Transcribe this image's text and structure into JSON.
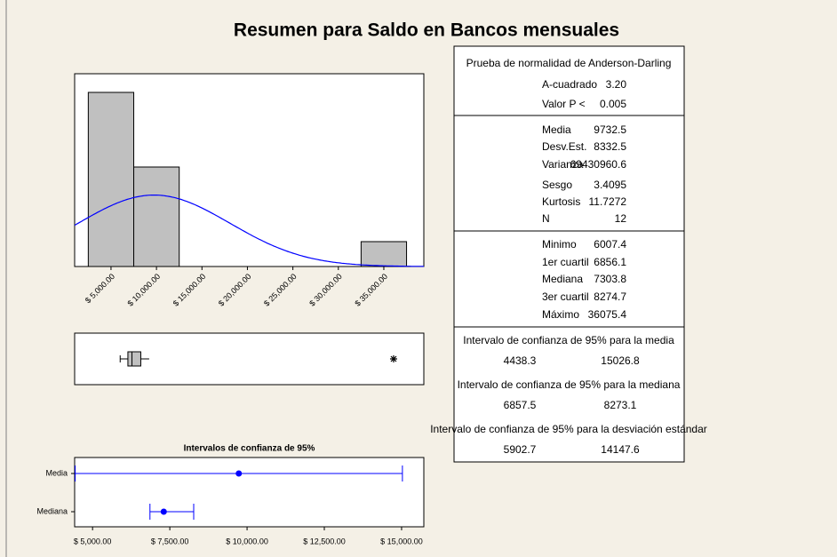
{
  "title": "Resumen para Saldo en Bancos mensuales",
  "chart_data": [
    {
      "type": "histogram",
      "bins": [
        2500,
        7500,
        12500,
        17500,
        22500,
        27500,
        32500,
        37500
      ],
      "values": [
        7,
        4,
        0,
        0,
        0,
        0,
        1
      ],
      "xlim": [
        1000,
        39400
      ],
      "ylim": [
        0,
        7.75
      ],
      "xticks": [
        {
          "value": 5000,
          "label": "$ 5,000.00"
        },
        {
          "value": 10000,
          "label": "$ 10,000.00"
        },
        {
          "value": 15000,
          "label": "$ 15,000.00"
        },
        {
          "value": 20000,
          "label": "$ 20,000.00"
        },
        {
          "value": 25000,
          "label": "$ 25,000.00"
        },
        {
          "value": 30000,
          "label": "$ 30,000.00"
        },
        {
          "value": 35000,
          "label": "$ 35,000.00"
        }
      ],
      "color": "#c0c0c0",
      "curve_color": "#0000ff"
    },
    {
      "type": "boxplot",
      "low": 6007.4,
      "q1": 6856.1,
      "median": 7303.8,
      "q3": 8274.7,
      "high": 9200,
      "outliers": [
        36075.4
      ],
      "xlim": [
        1000,
        39400
      ],
      "color": "#c0c0c0"
    },
    {
      "type": "interval",
      "title": "Intervalos de confianza de 95%",
      "categories": [
        "Media",
        "Mediana"
      ],
      "values": [
        9732.5,
        7303.8
      ],
      "lower": [
        4438.3,
        6857.5
      ],
      "upper": [
        15026.8,
        8273.1
      ],
      "xlim": [
        4420,
        15720
      ],
      "xticks": [
        {
          "value": 5000,
          "label": "$ 5,000.00"
        },
        {
          "value": 7500,
          "label": "$ 7,500.00"
        },
        {
          "value": 10000,
          "label": "$ 10,000.00"
        },
        {
          "value": 12500,
          "label": "$ 12,500.00"
        },
        {
          "value": 15000,
          "label": "$ 15,000.00"
        }
      ],
      "color": "#0000ff"
    }
  ],
  "stats": {
    "normality": {
      "header": "Prueba de normalidad de Anderson-Darling",
      "rows": [
        [
          "A-cuadrado",
          "3.20"
        ],
        [
          "Valor P <",
          "0.005"
        ]
      ]
    },
    "summary": {
      "rows": [
        [
          "Media",
          "9732.5"
        ],
        [
          "Desv.Est.",
          "8332.5"
        ],
        [
          "Varianza",
          "69430960.6"
        ],
        [
          "Sesgo",
          "3.4095"
        ],
        [
          "Kurtosis",
          "11.7272"
        ],
        [
          "N",
          "12"
        ]
      ]
    },
    "quartiles": {
      "rows": [
        [
          "Minimo",
          "6007.4"
        ],
        [
          "1er cuartil",
          "6856.1"
        ],
        [
          "Mediana",
          "7303.8"
        ],
        [
          "3er cuartil",
          "8274.7"
        ],
        [
          "Máximo",
          "36075.4"
        ]
      ]
    },
    "intervals": [
      {
        "header": "Intervalo de confianza de 95% para la media",
        "values": [
          "4438.3",
          "15026.8"
        ]
      },
      {
        "header": "Intervalo de confianza de 95% para la mediana",
        "values": [
          "6857.5",
          "8273.1"
        ]
      },
      {
        "header": "Intervalo de confianza de 95% para la desviación estándar",
        "values": [
          "5902.7",
          "14147.6"
        ]
      }
    ]
  }
}
